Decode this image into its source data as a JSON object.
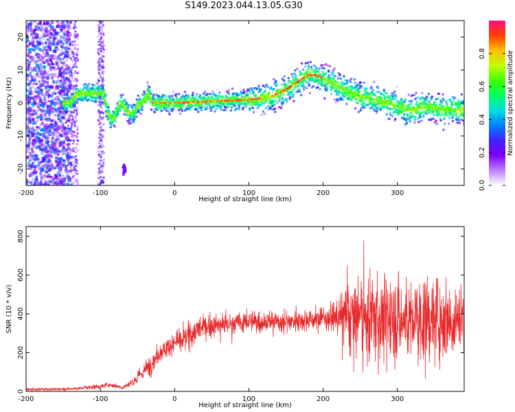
{
  "chart_title": "S149.2023.044.13.05.G30",
  "colors": {
    "snr_line": "#e8282a",
    "axis": "#000000",
    "colormap": [
      "#ffffff",
      "#c080ff",
      "#8000ff",
      "#4020ff",
      "#0080ff",
      "#00e0e0",
      "#00ff60",
      "#40ff00",
      "#c0ff00",
      "#ffc000",
      "#ff4000",
      "#ff1080"
    ]
  },
  "chart_data": [
    {
      "type": "heatmap",
      "title": "S149.2023.044.13.05.G30",
      "xlabel": "Height of straight line (km)",
      "ylabel": "Frequency (Hz)",
      "xlim": [
        -200,
        390
      ],
      "ylim": [
        -25,
        25
      ],
      "xticks": [
        -200,
        -100,
        0,
        100,
        200,
        300
      ],
      "yticks": [
        -20,
        -10,
        0,
        10,
        20
      ],
      "colorbar": {
        "label": "Normalized spectral amplitude",
        "range": [
          0.0,
          1.0
        ],
        "ticks": [
          "0.0",
          "0.2",
          "0.4",
          "0.6",
          "0.8"
        ],
        "tick_values": [
          0.0,
          0.2,
          0.4,
          0.6,
          0.8
        ]
      },
      "ridge": {
        "x": [
          -150,
          -140,
          -130,
          -120,
          -110,
          -100,
          -95,
          -90,
          -85,
          -80,
          -75,
          -70,
          -65,
          -60,
          -55,
          -50,
          -45,
          -40,
          -35,
          -30,
          -20,
          0,
          50,
          100,
          120,
          130,
          140,
          150,
          160,
          170,
          180,
          190,
          200,
          210,
          220,
          230,
          240,
          250,
          260,
          270,
          280,
          290,
          300,
          310,
          320,
          330,
          340,
          350,
          360,
          370,
          380,
          390
        ],
        "y": [
          0,
          0,
          3,
          3,
          3,
          3,
          3,
          -3,
          -5,
          -4,
          -1,
          0,
          -2,
          -3,
          -3,
          -1,
          0,
          1,
          3,
          0,
          0,
          0,
          0.5,
          1,
          1.5,
          2,
          3,
          4,
          5.5,
          7,
          8.5,
          8.5,
          7.5,
          6.5,
          5,
          4,
          3,
          2,
          1.5,
          1,
          0.5,
          0,
          -1,
          -2,
          -2,
          -1.5,
          -1,
          -1.5,
          -2,
          -2,
          -2,
          -2
        ]
      }
    },
    {
      "type": "line",
      "xlabel": "Height of straight line (km)",
      "ylabel": "SNR (10 * v/v)",
      "xlim": [
        -200,
        390
      ],
      "ylim": [
        0,
        850
      ],
      "xticks": [
        -200,
        -100,
        0,
        100,
        200,
        300
      ],
      "yticks": [
        0,
        200,
        400,
        600,
        800
      ],
      "series": [
        {
          "envelope": {
            "x": [
              -200,
              -150,
              -130,
              -120,
              -100,
              -90,
              -80,
              -70,
              -60,
              -50,
              -40,
              -30,
              -20,
              -10,
              0,
              10,
              20,
              30,
              40,
              50,
              60,
              80,
              100,
              120,
              150,
              180,
              200,
              220,
              230,
              240,
              260,
              280,
              300,
              320,
              340,
              360,
              390
            ],
            "mean": [
              10,
              12,
              15,
              20,
              25,
              35,
              30,
              20,
              40,
              70,
              110,
              150,
              200,
              230,
              250,
              260,
              290,
              320,
              330,
              340,
              340,
              350,
              360,
              360,
              360,
              370,
              380,
              380,
              390,
              380,
              380,
              380,
              370,
              370,
              370,
              380,
              380
            ],
            "spread": [
              8,
              8,
              10,
              12,
              15,
              15,
              15,
              12,
              25,
              40,
              60,
              70,
              60,
              60,
              60,
              70,
              90,
              90,
              80,
              70,
              70,
              70,
              70,
              70,
              70,
              70,
              70,
              100,
              200,
              260,
              280,
              300,
              280,
              280,
              280,
              280,
              250
            ]
          }
        }
      ]
    }
  ]
}
